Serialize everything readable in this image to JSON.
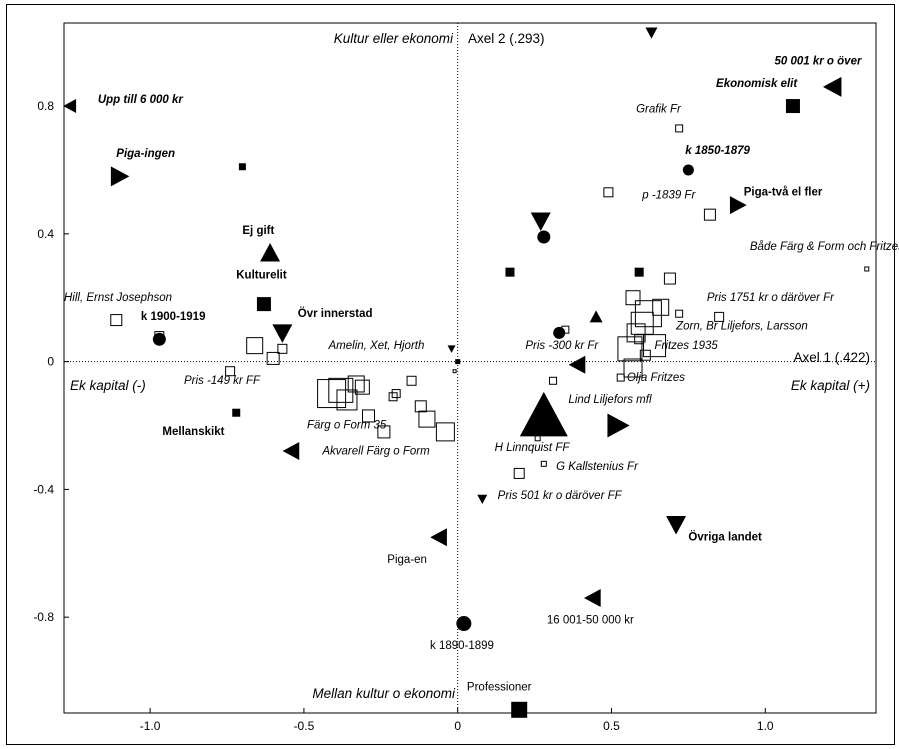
{
  "chart_data": {
    "type": "scatter",
    "xlim": [
      -1.28,
      1.36
    ],
    "ylim": [
      -1.1,
      1.06
    ],
    "xticks": [
      -1.0,
      -0.5,
      0,
      0.5,
      1.0
    ],
    "xtick_labels": [
      "-1.0",
      "-0.5",
      "0",
      "0.5",
      "1.0"
    ],
    "yticks": [
      0.8,
      0.4,
      0,
      -0.4,
      -0.8
    ],
    "ytick_labels": [
      "0.8",
      "0.4",
      "0",
      "-0.4",
      "-0.8"
    ],
    "grid": false,
    "axis_titles": {
      "axis1": "Axel 1 (.422)",
      "axis2": "Axel 2 (.293)",
      "pole_top": "Kultur eller ekonomi",
      "pole_bottom": "Mellan kultur o ekonomi",
      "pole_left": "Ek kapital (-)",
      "pole_right": "Ek kapital (+)"
    },
    "points": [
      {
        "label": "50 001 kr o över",
        "x": 1.22,
        "y": 0.86,
        "shape": "tri-left",
        "size": 10,
        "style": "bi",
        "lx": 1.03,
        "ly": 0.93,
        "anchor": "start"
      },
      {
        "label": "Ekonomisk elit",
        "x": 1.09,
        "y": 0.8,
        "shape": "square-filled",
        "size": 7,
        "style": "bi",
        "lx": 0.84,
        "ly": 0.86,
        "anchor": "start"
      },
      {
        "label": "",
        "x": 0.63,
        "y": 1.03,
        "shape": "tri-down",
        "size": 6,
        "style": "",
        "lx": 0,
        "ly": 0,
        "anchor": "start"
      },
      {
        "label": "Upp till 6 000 kr",
        "x": -1.26,
        "y": 0.8,
        "shape": "tri-left",
        "size": 7,
        "style": "bi",
        "lx": -1.17,
        "ly": 0.81,
        "anchor": "start"
      },
      {
        "label": "Piga-ingen",
        "x": -1.1,
        "y": 0.58,
        "shape": "tri-right",
        "size": 10,
        "style": "bi",
        "lx": -1.11,
        "ly": 0.64,
        "anchor": "start"
      },
      {
        "label": "",
        "x": -0.7,
        "y": 0.61,
        "shape": "square-filled",
        "size": 3.5,
        "style": "",
        "lx": 0,
        "ly": 0,
        "anchor": "start"
      },
      {
        "label": "Grafik Fr",
        "x": 0.72,
        "y": 0.73,
        "shape": "square-open",
        "size": 3.5,
        "style": "i",
        "lx": 0.58,
        "ly": 0.78,
        "anchor": "start"
      },
      {
        "label": "k 1850-1879",
        "x": 0.75,
        "y": 0.6,
        "shape": "circle-filled",
        "size": 5.5,
        "style": "bi",
        "lx": 0.74,
        "ly": 0.65,
        "anchor": "start"
      },
      {
        "label": "Piga-två el fler",
        "x": 0.91,
        "y": 0.49,
        "shape": "tri-right",
        "size": 9,
        "style": "b",
        "lx": 0.93,
        "ly": 0.52,
        "anchor": "start"
      },
      {
        "label": "p -1839 Fr",
        "x": 0.82,
        "y": 0.46,
        "shape": "square-open",
        "size": 5.5,
        "style": "i",
        "lx": 0.6,
        "ly": 0.51,
        "anchor": "start"
      },
      {
        "label": "",
        "x": 0.49,
        "y": 0.53,
        "shape": "square-open",
        "size": 4.5,
        "style": "",
        "lx": 0,
        "ly": 0,
        "anchor": "start"
      },
      {
        "label": "Ej gift",
        "x": -0.61,
        "y": 0.34,
        "shape": "tri-up",
        "size": 10,
        "style": "b",
        "lx": -0.7,
        "ly": 0.4,
        "anchor": "start"
      },
      {
        "label": "",
        "x": 0.27,
        "y": 0.44,
        "shape": "tri-down",
        "size": 10,
        "style": "",
        "lx": 0,
        "ly": 0,
        "anchor": "start"
      },
      {
        "label": "",
        "x": 0.28,
        "y": 0.39,
        "shape": "circle-filled",
        "size": 6.5,
        "style": "",
        "lx": 0,
        "ly": 0,
        "anchor": "start"
      },
      {
        "label": "Både Färg & Form och Fritzes",
        "x": 1.33,
        "y": 0.29,
        "shape": "square-open",
        "size": 2,
        "style": "i",
        "lx": 0.95,
        "ly": 0.35,
        "anchor": "start"
      },
      {
        "label": "Kulturelit",
        "x": -0.63,
        "y": 0.18,
        "shape": "square-filled",
        "size": 7,
        "style": "b",
        "lx": -0.72,
        "ly": 0.26,
        "anchor": "start"
      },
      {
        "label": "Övr innerstad",
        "x": -0.57,
        "y": 0.09,
        "shape": "tri-down",
        "size": 10,
        "style": "b",
        "lx": -0.52,
        "ly": 0.14,
        "anchor": "start"
      },
      {
        "label": "Hill, Ernst Josephson",
        "x": -1.11,
        "y": 0.13,
        "shape": "square-open",
        "size": 5.5,
        "style": "i",
        "lx": -1.28,
        "ly": 0.19,
        "anchor": "start"
      },
      {
        "label": "k 1900-1919",
        "x": -0.97,
        "y": 0.07,
        "shape": "circle-filled",
        "size": 6.5,
        "style": "b",
        "lx": -1.03,
        "ly": 0.13,
        "anchor": "start"
      },
      {
        "label": "",
        "x": -0.97,
        "y": 0.08,
        "shape": "square-open",
        "size": 4.5,
        "style": "",
        "lx": 0,
        "ly": 0,
        "anchor": "start"
      },
      {
        "label": "",
        "x": -0.66,
        "y": 0.05,
        "shape": "square-open",
        "size": 8,
        "style": "",
        "lx": 0,
        "ly": 0,
        "anchor": "start"
      },
      {
        "label": "",
        "x": -0.6,
        "y": 0.01,
        "shape": "square-open",
        "size": 6,
        "style": "",
        "lx": 0,
        "ly": 0,
        "anchor": "start"
      },
      {
        "label": "",
        "x": -0.57,
        "y": 0.04,
        "shape": "square-open",
        "size": 4.5,
        "style": "",
        "lx": 0,
        "ly": 0,
        "anchor": "start"
      },
      {
        "label": "Amelin, Xet, Hjorth",
        "x": -0.02,
        "y": 0.04,
        "shape": "tri-down",
        "size": 4,
        "style": "i",
        "lx": -0.42,
        "ly": 0.04,
        "anchor": "start"
      },
      {
        "label": "",
        "x": 0.0,
        "y": 0.0,
        "shape": "square-filled",
        "size": 2.5,
        "style": "",
        "lx": 0,
        "ly": 0,
        "anchor": "start"
      },
      {
        "label": "",
        "x": -0.01,
        "y": -0.03,
        "shape": "square-open",
        "size": 1.5,
        "style": "",
        "lx": 0,
        "ly": 0,
        "anchor": "start"
      },
      {
        "label": "Pris -149 kr FF",
        "x": -0.74,
        "y": -0.03,
        "shape": "square-open",
        "size": 4.5,
        "style": "i",
        "lx": -0.89,
        "ly": -0.07,
        "anchor": "start"
      },
      {
        "label": "Mellanskikt",
        "x": -0.72,
        "y": -0.16,
        "shape": "square-filled",
        "size": 4,
        "style": "b",
        "lx": -0.96,
        "ly": -0.23,
        "anchor": "start"
      },
      {
        "label": "",
        "x": -0.41,
        "y": -0.1,
        "shape": "square-open",
        "size": 14,
        "style": "",
        "lx": 0,
        "ly": 0,
        "anchor": "start"
      },
      {
        "label": "",
        "x": -0.38,
        "y": -0.09,
        "shape": "square-open",
        "size": 12,
        "style": "",
        "lx": 0,
        "ly": 0,
        "anchor": "start"
      },
      {
        "label": "",
        "x": -0.36,
        "y": -0.12,
        "shape": "square-open",
        "size": 10,
        "style": "",
        "lx": 0,
        "ly": 0,
        "anchor": "start"
      },
      {
        "label": "",
        "x": -0.33,
        "y": -0.07,
        "shape": "square-open",
        "size": 8,
        "style": "",
        "lx": 0,
        "ly": 0,
        "anchor": "start"
      },
      {
        "label": "",
        "x": -0.31,
        "y": -0.08,
        "shape": "square-open",
        "size": 7,
        "style": "",
        "lx": 0,
        "ly": 0,
        "anchor": "start"
      },
      {
        "label": "",
        "x": -0.29,
        "y": -0.17,
        "shape": "square-open",
        "size": 6,
        "style": "",
        "lx": 0,
        "ly": 0,
        "anchor": "start"
      },
      {
        "label": "",
        "x": -0.24,
        "y": -0.22,
        "shape": "square-open",
        "size": 6,
        "style": "",
        "lx": 0,
        "ly": 0,
        "anchor": "start"
      },
      {
        "label": "",
        "x": -0.2,
        "y": -0.1,
        "shape": "square-open",
        "size": 4,
        "style": "",
        "lx": 0,
        "ly": 0,
        "anchor": "start"
      },
      {
        "label": "",
        "x": -0.15,
        "y": -0.06,
        "shape": "square-open",
        "size": 4.5,
        "style": "",
        "lx": 0,
        "ly": 0,
        "anchor": "start"
      },
      {
        "label": "",
        "x": -0.12,
        "y": -0.14,
        "shape": "square-open",
        "size": 5.5,
        "style": "",
        "lx": 0,
        "ly": 0,
        "anchor": "start"
      },
      {
        "label": "",
        "x": -0.1,
        "y": -0.18,
        "shape": "square-open",
        "size": 8,
        "style": "",
        "lx": 0,
        "ly": 0,
        "anchor": "start"
      },
      {
        "label": "",
        "x": -0.04,
        "y": -0.22,
        "shape": "square-open",
        "size": 9,
        "style": "",
        "lx": 0,
        "ly": 0,
        "anchor": "start"
      },
      {
        "label": "Färg o Form 35",
        "x": -0.21,
        "y": -0.11,
        "shape": "square-open",
        "size": 4,
        "style": "i",
        "lx": -0.49,
        "ly": -0.21,
        "anchor": "start"
      },
      {
        "label": "Akvarell Färg o Form",
        "x": -0.54,
        "y": -0.28,
        "shape": "tri-left",
        "size": 9,
        "style": "i",
        "lx": -0.44,
        "ly": -0.29,
        "anchor": "start"
      },
      {
        "label": "",
        "x": 0.17,
        "y": 0.28,
        "shape": "square-filled",
        "size": 4.5,
        "style": "",
        "lx": 0,
        "ly": 0,
        "anchor": "start"
      },
      {
        "label": "",
        "x": 0.59,
        "y": 0.28,
        "shape": "square-filled",
        "size": 4.5,
        "style": "",
        "lx": 0,
        "ly": 0,
        "anchor": "start"
      },
      {
        "label": "",
        "x": 0.69,
        "y": 0.26,
        "shape": "square-open",
        "size": 5.5,
        "style": "",
        "lx": 0,
        "ly": 0,
        "anchor": "start"
      },
      {
        "label": "",
        "x": 0.45,
        "y": 0.14,
        "shape": "tri-up",
        "size": 6.5,
        "style": "",
        "lx": 0,
        "ly": 0,
        "anchor": "start"
      },
      {
        "label": "",
        "x": 0.33,
        "y": 0.09,
        "shape": "circle-filled",
        "size": 6,
        "style": "",
        "lx": 0,
        "ly": 0,
        "anchor": "start"
      },
      {
        "label": "Pris -300 kr Fr",
        "x": 0.35,
        "y": 0.1,
        "shape": "square-open",
        "size": 3.5,
        "style": "i",
        "lx": 0.22,
        "ly": 0.04,
        "anchor": "start"
      },
      {
        "label": "",
        "x": 0.57,
        "y": 0.2,
        "shape": "square-open",
        "size": 7,
        "style": "",
        "lx": 0,
        "ly": 0,
        "anchor": "start"
      },
      {
        "label": "",
        "x": 0.62,
        "y": 0.15,
        "shape": "square-open",
        "size": 13,
        "style": "",
        "lx": 0,
        "ly": 0,
        "anchor": "start"
      },
      {
        "label": "",
        "x": 0.6,
        "y": 0.12,
        "shape": "square-open",
        "size": 11,
        "style": "",
        "lx": 0,
        "ly": 0,
        "anchor": "start"
      },
      {
        "label": "",
        "x": 0.58,
        "y": 0.09,
        "shape": "square-open",
        "size": 9,
        "style": "",
        "lx": 0,
        "ly": 0,
        "anchor": "start"
      },
      {
        "label": "",
        "x": 0.56,
        "y": 0.04,
        "shape": "square-open",
        "size": 12,
        "style": "",
        "lx": 0,
        "ly": 0,
        "anchor": "start"
      },
      {
        "label": "",
        "x": 0.64,
        "y": 0.05,
        "shape": "square-open",
        "size": 11,
        "style": "",
        "lx": 0,
        "ly": 0,
        "anchor": "start"
      },
      {
        "label": "",
        "x": 0.66,
        "y": 0.17,
        "shape": "square-open",
        "size": 8,
        "style": "",
        "lx": 0,
        "ly": 0,
        "anchor": "start"
      },
      {
        "label": "",
        "x": 0.72,
        "y": 0.15,
        "shape": "square-open",
        "size": 3.5,
        "style": "",
        "lx": 0,
        "ly": 0,
        "anchor": "start"
      },
      {
        "label": "Pris 1751 kr o däröver Fr",
        "x": 0.85,
        "y": 0.14,
        "shape": "square-open",
        "size": 4.5,
        "style": "i",
        "lx": 0.81,
        "ly": 0.19,
        "anchor": "start"
      },
      {
        "label": "Zorn, Br Liljefors, Larsson",
        "x": 0.59,
        "y": 0.07,
        "shape": "square-open",
        "size": 4.5,
        "style": "i",
        "lx": 0.71,
        "ly": 0.1,
        "anchor": "start"
      },
      {
        "label": "Fritzes 1935",
        "x": 0.61,
        "y": 0.02,
        "shape": "square-open",
        "size": 5,
        "style": "i",
        "lx": 0.64,
        "ly": 0.04,
        "anchor": "start"
      },
      {
        "label": "Olja Fritzes",
        "x": 0.57,
        "y": -0.02,
        "shape": "square-open",
        "size": 9,
        "style": "i",
        "lx": 0.55,
        "ly": -0.06,
        "anchor": "start"
      },
      {
        "label": "",
        "x": 0.53,
        "y": -0.05,
        "shape": "square-open",
        "size": 3.5,
        "style": "",
        "lx": 0,
        "ly": 0,
        "anchor": "start"
      },
      {
        "label": "",
        "x": 0.39,
        "y": -0.01,
        "shape": "tri-left",
        "size": 9,
        "style": "",
        "lx": 0,
        "ly": 0,
        "anchor": "start"
      },
      {
        "label": "",
        "x": 0.31,
        "y": -0.06,
        "shape": "square-open",
        "size": 3.5,
        "style": "",
        "lx": 0,
        "ly": 0,
        "anchor": "start"
      },
      {
        "label": "Lind Liljefors mfl",
        "x": 0.28,
        "y": -0.17,
        "shape": "tri-up",
        "size": 24,
        "style": "i",
        "lx": 0.36,
        "ly": -0.13,
        "anchor": "start"
      },
      {
        "label": "",
        "x": 0.52,
        "y": -0.2,
        "shape": "tri-right",
        "size": 12,
        "style": "",
        "lx": 0,
        "ly": 0,
        "anchor": "start"
      },
      {
        "label": "H Linnquist FF",
        "x": 0.26,
        "y": -0.24,
        "shape": "square-open",
        "size": 2.5,
        "style": "i",
        "lx": 0.12,
        "ly": -0.28,
        "anchor": "start"
      },
      {
        "label": "G Kallstenius Fr",
        "x": 0.28,
        "y": -0.32,
        "shape": "square-open",
        "size": 2.5,
        "style": "i",
        "lx": 0.32,
        "ly": -0.34,
        "anchor": "start"
      },
      {
        "label": "",
        "x": 0.2,
        "y": -0.35,
        "shape": "square-open",
        "size": 5,
        "style": "",
        "lx": 0,
        "ly": 0,
        "anchor": "start"
      },
      {
        "label": "Pris 501 kr o däröver FF",
        "x": 0.08,
        "y": -0.43,
        "shape": "tri-down",
        "size": 5,
        "style": "i",
        "lx": 0.13,
        "ly": -0.43,
        "anchor": "start"
      },
      {
        "label": "Övriga landet",
        "x": 0.71,
        "y": -0.51,
        "shape": "tri-down",
        "size": 10,
        "style": "b",
        "lx": 0.75,
        "ly": -0.56,
        "anchor": "start"
      },
      {
        "label": "Piga-en",
        "x": -0.06,
        "y": -0.55,
        "shape": "tri-left",
        "size": 9,
        "style": "",
        "lx": -0.1,
        "ly": -0.63,
        "anchor": "end"
      },
      {
        "label": "16 001-50 000 kr",
        "x": 0.44,
        "y": -0.74,
        "shape": "tri-left",
        "size": 9,
        "style": "",
        "lx": 0.29,
        "ly": -0.82,
        "anchor": "start"
      },
      {
        "label": "k 1890-1899",
        "x": 0.02,
        "y": -0.82,
        "shape": "circle-filled",
        "size": 7.5,
        "style": "",
        "lx": -0.09,
        "ly": -0.9,
        "anchor": "start"
      },
      {
        "label": "Professioner",
        "x": 0.2,
        "y": -1.09,
        "shape": "square-filled",
        "size": 8,
        "style": "",
        "lx": 0.03,
        "ly": -1.03,
        "anchor": "start"
      }
    ]
  }
}
